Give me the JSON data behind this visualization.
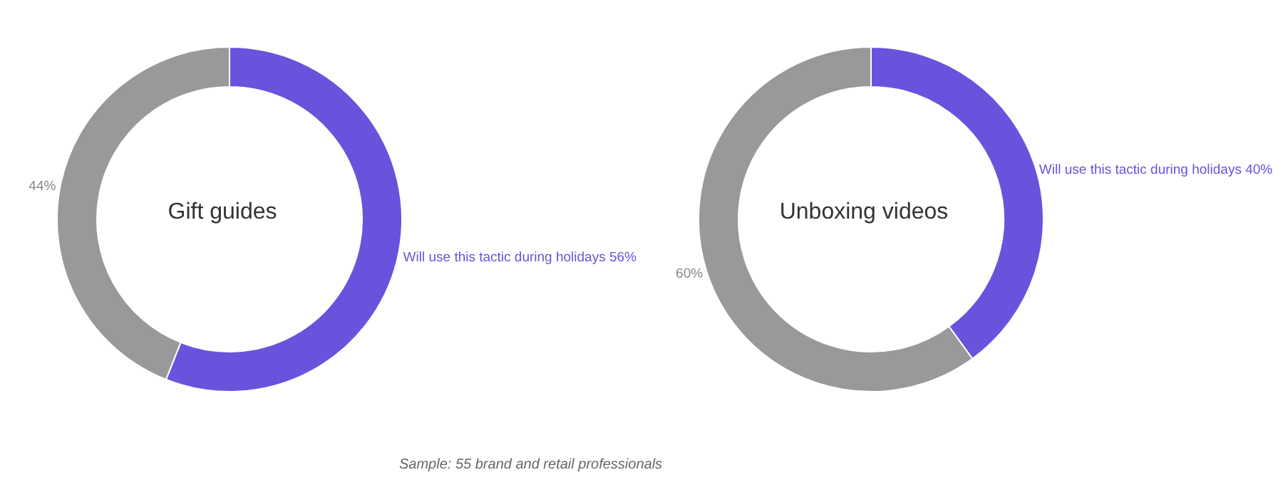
{
  "chart_data": [
    {
      "type": "donut",
      "title": "Gift guides",
      "categories": [
        "Will use this tactic during holidays",
        null
      ],
      "values": [
        56,
        44
      ],
      "value_labels": [
        "56%",
        "44%"
      ],
      "colors": [
        "#6b52dc",
        "#999999"
      ],
      "annotations": [
        "Sample: 55 brand and retail professionals"
      ]
    },
    {
      "type": "donut",
      "title": "Unboxing videos",
      "categories": [
        "Will use this tactic during holidays",
        null
      ],
      "values": [
        40,
        60
      ],
      "value_labels": [
        "40%",
        "60%"
      ],
      "colors": [
        "#6b52dc",
        "#999999"
      ]
    }
  ]
}
